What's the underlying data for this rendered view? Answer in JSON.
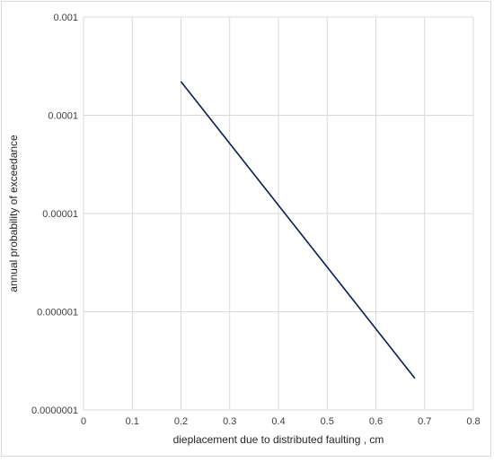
{
  "chart_data": {
    "type": "line",
    "title": "",
    "xlabel": "dieplacement due to distributed faulting , cm",
    "ylabel": "annual probability of exceedance",
    "xlim": [
      0,
      0.8
    ],
    "ylim": [
      1e-07,
      0.001
    ],
    "y_scale": "log",
    "grid": true,
    "legend": "none",
    "x_ticks": [
      "0",
      "0.1",
      "0.2",
      "0.3",
      "0.4",
      "0.5",
      "0.6",
      "0.7",
      "0.8"
    ],
    "y_ticks": [
      "0.001",
      "0.0001",
      "0.00001",
      "0.000001",
      "0.0000001"
    ],
    "series": [
      {
        "x": [
          0.2,
          0.68
        ],
        "y": [
          0.00022,
          2.1e-07
        ],
        "color": "#0b1d51"
      }
    ],
    "colors": {
      "grid": "#d9d9d9",
      "line": "#0b1d51"
    }
  }
}
